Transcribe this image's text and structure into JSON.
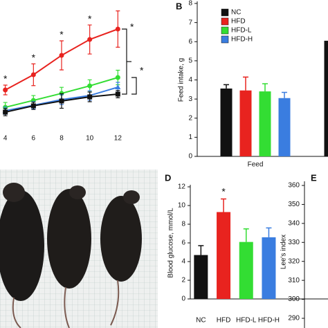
{
  "chart_data": [
    {
      "type": "line",
      "x": [
        4,
        6,
        8,
        10,
        12
      ],
      "xlim": [
        2,
        14
      ],
      "xticks": [
        4,
        6,
        8,
        10,
        12
      ],
      "ylim": [
        0,
        10
      ],
      "series": [
        {
          "color": "#e8231f",
          "marker": "circle",
          "values": [
            2.57,
            3.83,
            5.43,
            6.74,
            7.6
          ],
          "errors": [
            0.4,
            0.9,
            1.2,
            1.2,
            1.5
          ],
          "markers": [
            "*",
            "*",
            "*",
            "*",
            null
          ]
        },
        {
          "color": "#33dd33",
          "marker": "circle",
          "values": [
            1.14,
            1.71,
            2.29,
            2.91,
            3.6
          ],
          "errors": [
            0.4,
            0.4,
            0.5,
            0.5,
            0.6
          ]
        },
        {
          "color": "#3a7de0",
          "marker": "triangle",
          "values": [
            0.86,
            1.31,
            1.77,
            2.11,
            2.8
          ],
          "errors": [
            0.3,
            0.3,
            0.4,
            0.4,
            0.4
          ]
        },
        {
          "color": "#111111",
          "marker": "square",
          "values": [
            0.74,
            1.26,
            1.66,
            2.0,
            2.23
          ],
          "errors": [
            0.3,
            0.3,
            0.6,
            0.4,
            0.3
          ]
        }
      ],
      "comparisons": [
        {
          "label": "*",
          "color": "#e8231f"
        },
        {
          "label": "*",
          "color": "#33dd33"
        }
      ]
    },
    {
      "type": "bar",
      "panel": "B",
      "y_label": "Feed intake, g",
      "categories": [
        "Feed",
        null
      ],
      "ylim": [
        0,
        8
      ],
      "yticks": [
        0,
        1,
        2,
        3,
        4,
        5,
        6,
        7,
        8
      ],
      "legend": "upper left",
      "series": [
        {
          "name": "NC",
          "color": "#111111",
          "values": [
            3.55,
            6.05
          ],
          "errors": [
            0.2,
            null
          ]
        },
        {
          "name": "HFD",
          "color": "#e8231f",
          "values": [
            3.45,
            null
          ],
          "errors": [
            0.7,
            null
          ]
        },
        {
          "name": "HFD-L",
          "color": "#33dd33",
          "values": [
            3.4,
            null
          ],
          "errors": [
            0.4,
            null
          ]
        },
        {
          "name": "HFD-H",
          "color": "#3a7de0",
          "values": [
            3.05,
            null
          ],
          "errors": [
            0.3,
            null
          ]
        }
      ]
    },
    {
      "type": "bar",
      "panel": "D",
      "y_label": "Blood glucose, mmol/L",
      "categories": [
        "NC",
        "HFD",
        "HFD-L",
        "HFD-H"
      ],
      "ylim": [
        0,
        12
      ],
      "yticks": [
        0,
        2,
        4,
        6,
        8,
        10,
        12
      ],
      "series": [
        {
          "colors": [
            "#111111",
            "#e8231f",
            "#33dd33",
            "#3a7de0"
          ],
          "values": [
            4.7,
            9.3,
            6.1,
            6.6
          ],
          "errors": [
            1.0,
            1.4,
            1.4,
            1.0
          ],
          "markers": [
            null,
            "*",
            null,
            null
          ]
        }
      ]
    },
    {
      "type": "bar",
      "panel": "E",
      "y_label": "Lee's index",
      "ylim": [
        290,
        360
      ],
      "yticks": [
        290,
        300,
        310,
        320,
        330,
        340,
        350,
        360
      ],
      "series": []
    }
  ]
}
